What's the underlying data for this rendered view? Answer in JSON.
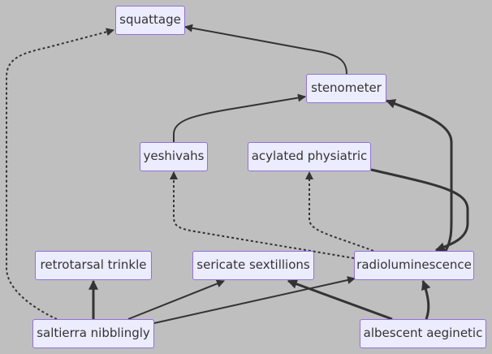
{
  "diagram": {
    "background_color": "#bfbfbf",
    "node_fill": "#ececff",
    "node_border": "#9370db",
    "text_color": "#333333",
    "edge_color": "#333333",
    "nodes": {
      "squattage": "squattage",
      "stenometer": "stenometer",
      "yeshivahs": "yeshivahs",
      "acylated": "acylated physiatric",
      "retrotarsal": "retrotarsal trinkle",
      "sericate": "sericate sextillions",
      "radio": "radioluminescence",
      "saltierra": "saltierra nibblingly",
      "albescent": "albescent aeginetic"
    },
    "edges": [
      {
        "from": "stenometer",
        "to": "squattage",
        "style": "normal"
      },
      {
        "from": "saltierra nibblingly",
        "to": "squattage",
        "style": "dotted"
      },
      {
        "from": "yeshivahs",
        "to": "stenometer",
        "style": "normal"
      },
      {
        "from": "radioluminescence",
        "to": "stenometer",
        "style": "thick"
      },
      {
        "from": "acylated physiatric",
        "to": "radioluminescence",
        "style": "thick"
      },
      {
        "from": "radioluminescence",
        "to": "yeshivahs",
        "style": "dotted"
      },
      {
        "from": "radioluminescence",
        "to": "acylated physiatric",
        "style": "dotted"
      },
      {
        "from": "saltierra nibblingly",
        "to": "retrotarsal trinkle",
        "style": "thick"
      },
      {
        "from": "saltierra nibblingly",
        "to": "sericate sextillions",
        "style": "normal"
      },
      {
        "from": "saltierra nibblingly",
        "to": "radioluminescence",
        "style": "normal"
      },
      {
        "from": "albescent aeginetic",
        "to": "sericate sextillions",
        "style": "thick"
      },
      {
        "from": "albescent aeginetic",
        "to": "radioluminescence",
        "style": "thick"
      }
    ]
  }
}
